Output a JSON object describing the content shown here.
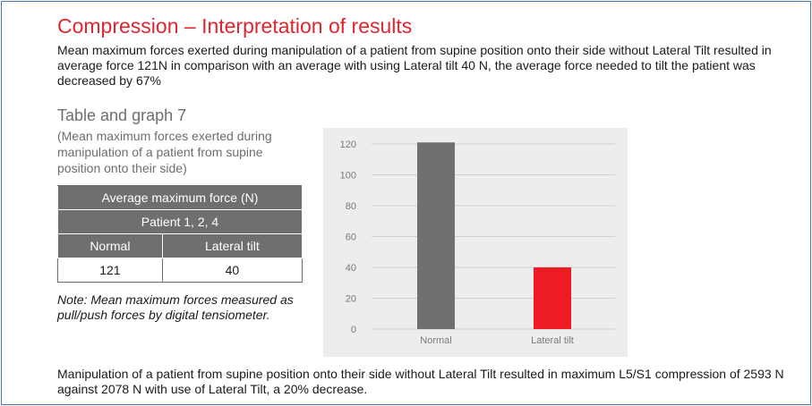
{
  "heading": "Compression – Interpretation of results",
  "intro_text": "Mean maximum forces exerted during manipulation of a patient from supine position onto their side without Lateral Tilt resulted in average force 121N in comparison with an average with using Lateral tilt 40 N, the average force needed to tilt the patient was decreased by 67%",
  "section": {
    "title": "Table and graph 7",
    "caption": "(Mean maximum forces exerted during manipulation of a patient from supine position onto their side)"
  },
  "table": {
    "header": "Average maximum force (N)",
    "subheader": "Patient 1, 2, 4",
    "columns": [
      "Normal",
      "Lateral tilt"
    ],
    "values": [
      "121",
      "40"
    ]
  },
  "note": "Note: Mean maximum forces measured as pull/push forces by digital tensiometer.",
  "footer_text": "Manipulation of a patient from supine position onto their side without Lateral Tilt resulted in maximum L5/S1 compression of 2593 N against 2078 N with use of Lateral Tilt, a 20% decrease.",
  "colors": {
    "accent": "#e0262e",
    "bar_normal": "#707070",
    "bar_lateral": "#ed1c24",
    "table_header": "#6f6f6f",
    "chart_bg": "#ededed"
  },
  "chart_data": {
    "type": "bar",
    "categories": [
      "Normal",
      "Lateral tilt"
    ],
    "values": [
      121,
      40
    ],
    "ylim": [
      0,
      120
    ],
    "yticks": [
      0,
      20,
      40,
      60,
      80,
      100,
      120
    ],
    "grid": true,
    "legend": "none"
  }
}
